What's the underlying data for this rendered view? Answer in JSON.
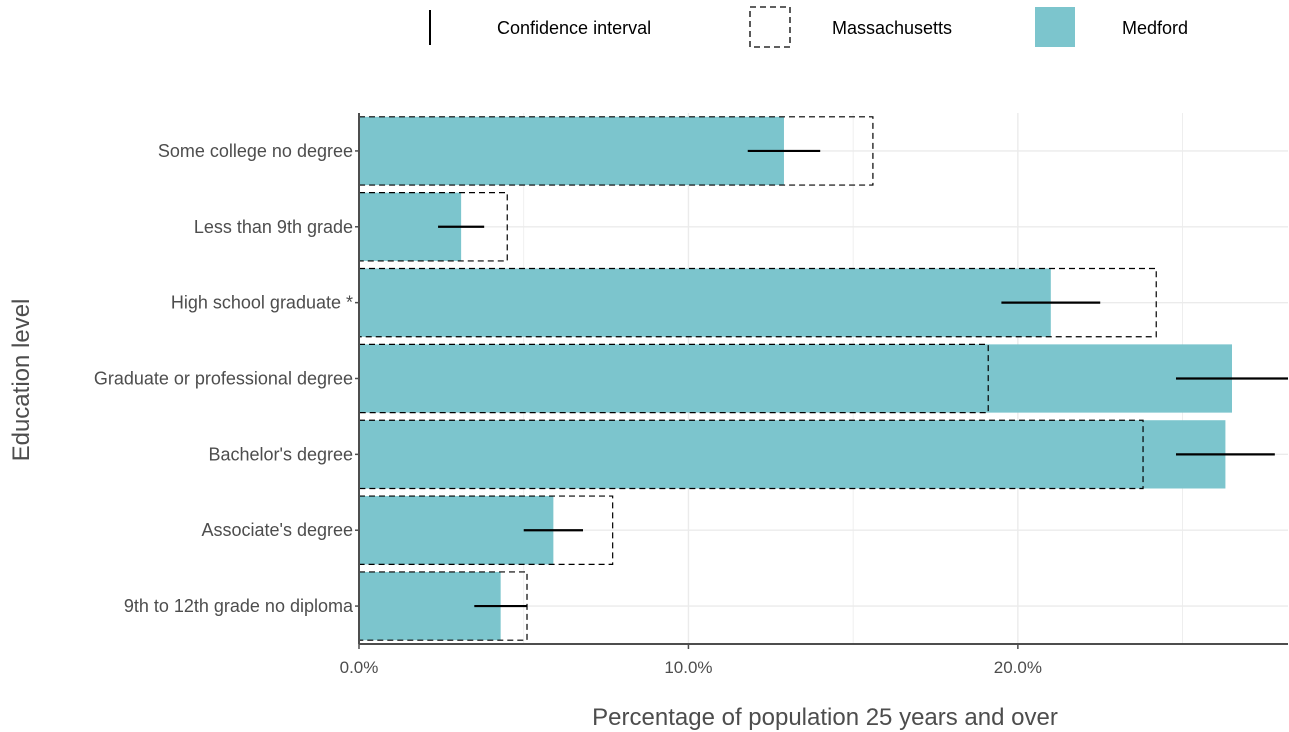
{
  "chart_data": {
    "type": "bar",
    "orientation": "horizontal",
    "xlabel": "Percentage of population 25 years and over",
    "ylabel": "Education level",
    "xlim": [
      0,
      28.2
    ],
    "x_ticks": [
      0,
      10,
      20
    ],
    "x_tick_labels": [
      "0.0%",
      "10.0%",
      "20.0%"
    ],
    "grid": true,
    "legend_position": "top",
    "legend": [
      {
        "key": "ci",
        "label": "Confidence interval"
      },
      {
        "key": "ma",
        "label": "Massachusetts"
      },
      {
        "key": "medford",
        "label": "Medford"
      }
    ],
    "colors": {
      "medford": "#7cc5cd",
      "massachusetts_outline": "#000000",
      "ci": "#000000",
      "grid": "#ebebeb",
      "axis": "#4d4d4d"
    },
    "categories": [
      "Some college no degree",
      "Less than 9th grade",
      "High school graduate *",
      "Graduate or professional degree",
      "Bachelor's degree",
      "Associate's degree",
      "9th to 12th grade no diploma"
    ],
    "series": [
      {
        "name": "Medford",
        "values": [
          12.9,
          3.1,
          21.0,
          26.5,
          26.3,
          5.9,
          4.3
        ]
      },
      {
        "name": "Massachusetts",
        "values": [
          15.6,
          4.5,
          24.2,
          19.1,
          23.8,
          7.7,
          5.1
        ]
      }
    ],
    "confidence_intervals": [
      [
        11.8,
        14.0
      ],
      [
        2.4,
        3.8
      ],
      [
        19.5,
        22.5
      ],
      [
        24.8,
        28.2
      ],
      [
        24.8,
        27.8
      ],
      [
        5.0,
        6.8
      ],
      [
        3.5,
        5.1
      ]
    ]
  }
}
